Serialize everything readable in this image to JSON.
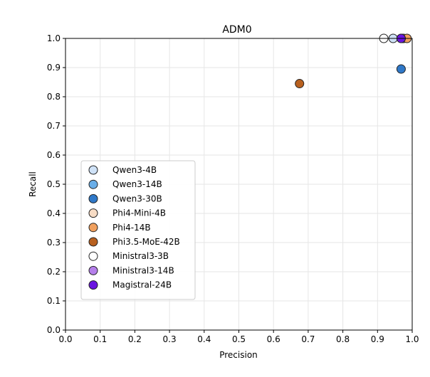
{
  "chart_data": {
    "type": "scatter",
    "title": "ADM0",
    "xlabel": "Precision",
    "ylabel": "Recall",
    "xlim": [
      0.0,
      1.0
    ],
    "ylim": [
      0.0,
      1.0
    ],
    "xticks": [
      "0.0",
      "0.1",
      "0.2",
      "0.3",
      "0.4",
      "0.5",
      "0.6",
      "0.7",
      "0.8",
      "0.9",
      "1.0"
    ],
    "yticks": [
      "0.0",
      "0.1",
      "0.2",
      "0.3",
      "0.4",
      "0.5",
      "0.6",
      "0.7",
      "0.8",
      "0.9",
      "1.0"
    ],
    "grid": true,
    "legend_position": "center-left",
    "series": [
      {
        "name": "Qwen3-4B",
        "color": "#cfe2f7",
        "x": [
          0.945
        ],
        "y": [
          1.0
        ]
      },
      {
        "name": "Qwen3-14B",
        "color": "#6aaee8",
        "x": [
          0.97
        ],
        "y": [
          1.0
        ]
      },
      {
        "name": "Qwen3-30B",
        "color": "#2f78c8",
        "x": [
          0.968
        ],
        "y": [
          0.895
        ]
      },
      {
        "name": "Phi4-Mini-4B",
        "color": "#f7dcc5",
        "x": [
          0.975
        ],
        "y": [
          1.0
        ]
      },
      {
        "name": "Phi4-14B",
        "color": "#f0a05e",
        "x": [
          0.985
        ],
        "y": [
          1.0
        ]
      },
      {
        "name": "Phi3.5-MoE-42B",
        "color": "#b8601f",
        "x": [
          0.675
        ],
        "y": [
          0.845
        ]
      },
      {
        "name": "Ministral3-3B",
        "color": "#ffffff",
        "x": [
          0.918
        ],
        "y": [
          1.0
        ]
      },
      {
        "name": "Ministral3-14B",
        "color": "#b57fea",
        "x": [
          0.968
        ],
        "y": [
          1.0
        ]
      },
      {
        "name": "Magistral-24B",
        "color": "#6a14e0",
        "x": [
          0.968
        ],
        "y": [
          1.0
        ]
      }
    ]
  }
}
